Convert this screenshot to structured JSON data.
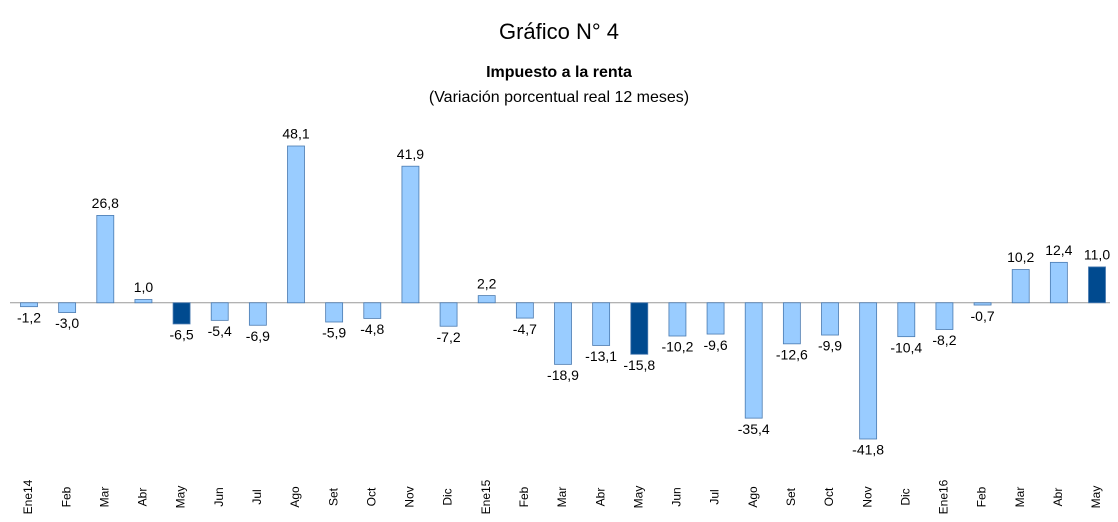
{
  "chart_data": {
    "type": "bar",
    "title": "Gráfico N° 4",
    "subtitle": "Impuesto a la renta",
    "note": "(Variación porcentual real 12 meses)",
    "categories": [
      "Ene14",
      "Feb",
      "Mar",
      "Abr",
      "May",
      "Jun",
      "Jul",
      "Ago",
      "Set",
      "Oct",
      "Nov",
      "Dic",
      "Ene15",
      "Feb",
      "Mar",
      "Abr",
      "May",
      "Jun",
      "Jul",
      "Ago",
      "Set",
      "Oct",
      "Nov",
      "Dic",
      "Ene16",
      "Feb",
      "Mar",
      "Abr",
      "May"
    ],
    "values": [
      -1.2,
      -3.0,
      26.8,
      1.0,
      -6.5,
      -5.4,
      -6.9,
      48.1,
      -5.9,
      -4.8,
      41.9,
      -7.2,
      2.2,
      -4.7,
      -18.9,
      -13.1,
      -15.8,
      -10.2,
      -9.6,
      -35.4,
      -12.6,
      -9.9,
      -41.8,
      -10.4,
      -8.2,
      -0.7,
      10.2,
      12.4,
      11.0
    ],
    "value_labels": [
      "-1,2",
      "-3,0",
      "26,8",
      "1,0",
      "-6,5",
      "-5,4",
      "-6,9",
      "48,1",
      "-5,9",
      "-4,8",
      "41,9",
      "-7,2",
      "2,2",
      "-4,7",
      "-18,9",
      "-13,1",
      "-15,8",
      "-10,2",
      "-9,6",
      "-35,4",
      "-12,6",
      "-9,9",
      "-41,8",
      "-10,4",
      "-8,2",
      "-0,7",
      "10,2",
      "12,4",
      "11,0"
    ],
    "colors": [
      "#99ccff",
      "#99ccff",
      "#99ccff",
      "#99ccff",
      "#004a8f",
      "#99ccff",
      "#99ccff",
      "#99ccff",
      "#99ccff",
      "#99ccff",
      "#99ccff",
      "#99ccff",
      "#99ccff",
      "#99ccff",
      "#99ccff",
      "#99ccff",
      "#004a8f",
      "#99ccff",
      "#99ccff",
      "#99ccff",
      "#99ccff",
      "#99ccff",
      "#99ccff",
      "#99ccff",
      "#99ccff",
      "#99ccff",
      "#99ccff",
      "#99ccff",
      "#004a8f"
    ]
  }
}
